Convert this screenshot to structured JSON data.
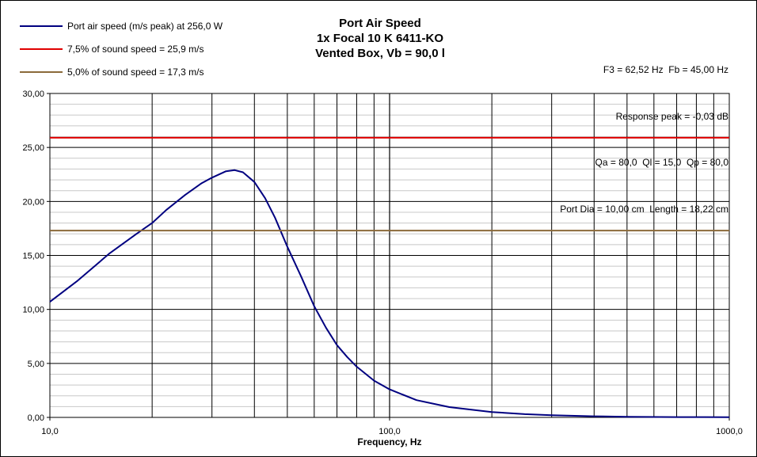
{
  "chart_data": {
    "type": "line",
    "title_lines": [
      "Port Air Speed",
      "1x Focal 10 K 6411-KO",
      "Vented Box, Vb = 90,0 l"
    ],
    "xlabel": "Frequency, Hz",
    "ylabel": "",
    "xscale": "log",
    "xlim": [
      10,
      1000
    ],
    "ylim": [
      0,
      30
    ],
    "grid": true,
    "x_tick_labels": [
      "10,0",
      "100,0",
      "1000,0"
    ],
    "y_tick_labels": [
      "0,00",
      "5,00",
      "10,00",
      "15,00",
      "20,00",
      "25,00",
      "30,00"
    ],
    "legend_position": "top-left",
    "parameters": [
      "F3 = 62,52 Hz  Fb = 45,00 Hz",
      "Response peak = -0,03 dB",
      "Qa = 80,0  Ql = 15,0  Qp = 80,0",
      "Port Dia = 10,00 cm  Length = 18,22 cm"
    ],
    "series": [
      {
        "name": "Port air speed (m/s peak) at 256,0 W",
        "color": "#000080",
        "x": [
          10,
          12,
          15,
          18,
          20,
          22,
          25,
          28,
          30,
          33,
          35,
          37,
          40,
          43,
          46,
          50,
          55,
          60,
          65,
          70,
          75,
          80,
          90,
          100,
          120,
          150,
          200,
          250,
          300,
          400,
          500,
          700,
          1000
        ],
        "y": [
          10.7,
          12.6,
          15.2,
          17.0,
          18.0,
          19.2,
          20.6,
          21.7,
          22.2,
          22.8,
          22.9,
          22.7,
          21.8,
          20.3,
          18.5,
          15.8,
          13.0,
          10.3,
          8.3,
          6.7,
          5.6,
          4.7,
          3.4,
          2.6,
          1.6,
          0.95,
          0.5,
          0.3,
          0.2,
          0.1,
          0.06,
          0.03,
          0.02
        ]
      },
      {
        "name": "7,5% of sound speed = 25,9 m/s",
        "color": "#e00000",
        "x": [
          10,
          1000
        ],
        "y": [
          25.9,
          25.9
        ]
      },
      {
        "name": "5,0% of sound speed = 17,3 m/s",
        "color": "#8b6a3a",
        "x": [
          10,
          1000
        ],
        "y": [
          17.3,
          17.3
        ]
      }
    ]
  }
}
